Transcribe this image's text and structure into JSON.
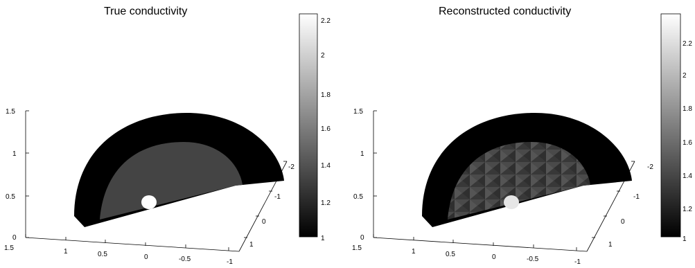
{
  "panels": [
    {
      "id": "true",
      "title": "True conductivity",
      "colorbar_ticks": [
        "2.2",
        "2",
        "1.8",
        "1.6",
        "1.4",
        "1.2",
        "1"
      ],
      "colorbar_range": [
        0.9,
        2.25
      ],
      "z_ticks": [
        "1.5",
        "1",
        "0.5",
        "0"
      ],
      "x_ticks": [
        "1.5",
        "1",
        "0.5",
        "0",
        "-0.5",
        "-1"
      ],
      "y_ticks": [
        "-2",
        "-1",
        "0",
        "1"
      ]
    },
    {
      "id": "reconstructed",
      "title": "Reconstructed conductivity",
      "colorbar_ticks": [
        "2.2",
        "2",
        "1.8",
        "1.6",
        "1.4",
        "1.2",
        "1"
      ],
      "colorbar_range": [
        0.9,
        2.35
      ],
      "z_ticks": [
        "1.5",
        "1",
        "0.5",
        "0"
      ],
      "x_ticks": [
        "1.5",
        "1",
        "0.5",
        "0",
        "-0.5",
        "-1"
      ],
      "y_ticks": [
        "-2",
        "-1",
        "0",
        "1"
      ]
    }
  ]
}
